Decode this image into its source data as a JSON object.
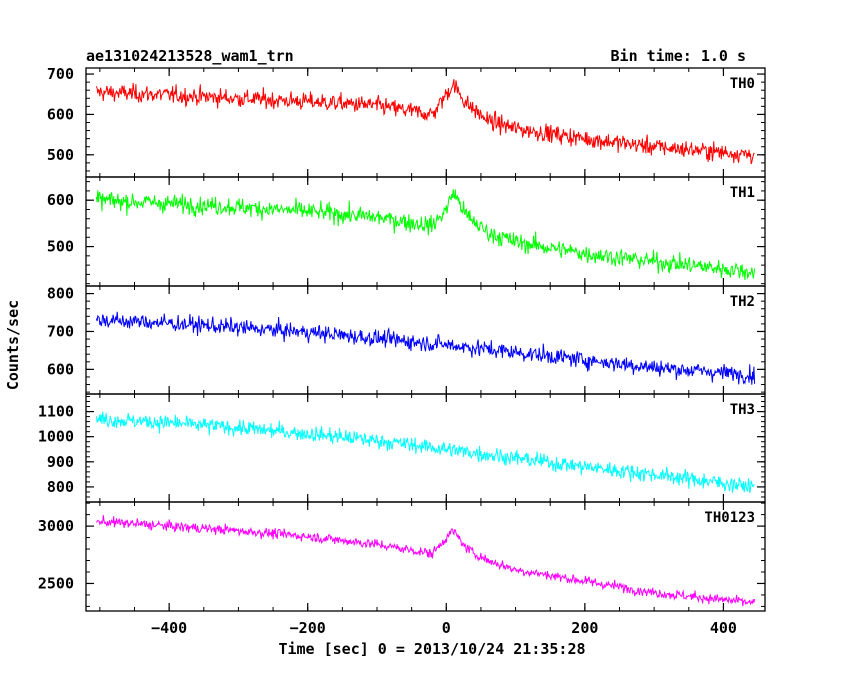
{
  "chart_data": {
    "type": "line",
    "title": "ae131024213528_wam1_trn",
    "bin_time_label": "Bin time: 1.0 s",
    "xlabel": "Time [sec] 0 = 2013/10/24 21:35:28",
    "ylabel": "Counts/sec",
    "xlim": [
      -520,
      460
    ],
    "x_ticks": [
      -400,
      -200,
      0,
      200,
      400
    ],
    "x_tick_labels": [
      "−400",
      "−200",
      "0",
      "200",
      "400"
    ],
    "grid": false,
    "panels": [
      {
        "name": "TH0",
        "color": "#ff0000",
        "ylim": [
          445,
          715
        ],
        "y_ticks": [
          500,
          600,
          700
        ],
        "y_tick_labels": [
          "500",
          "600",
          "700"
        ],
        "x": [
          -500,
          -400,
          -300,
          -200,
          -100,
          -20,
          0,
          10,
          30,
          60,
          100,
          200,
          300,
          445
        ],
        "y": [
          655,
          648,
          640,
          632,
          622,
          600,
          650,
          675,
          625,
          585,
          565,
          540,
          520,
          500
        ],
        "noise_sd": 28
      },
      {
        "name": "TH1",
        "color": "#00ff00",
        "ylim": [
          415,
          650
        ],
        "y_ticks": [
          500,
          600
        ],
        "y_tick_labels": [
          "500",
          "600"
        ],
        "x": [
          -500,
          -400,
          -300,
          -200,
          -100,
          -20,
          0,
          10,
          30,
          60,
          100,
          200,
          300,
          445
        ],
        "y": [
          600,
          593,
          585,
          576,
          563,
          545,
          580,
          618,
          565,
          530,
          510,
          485,
          468,
          445
        ],
        "noise_sd": 25
      },
      {
        "name": "TH2",
        "color": "#0000ff",
        "ylim": [
          535,
          820
        ],
        "y_ticks": [
          600,
          700,
          800
        ],
        "y_tick_labels": [
          "600",
          "700",
          "800"
        ],
        "x": [
          -500,
          -400,
          -300,
          -200,
          -100,
          0,
          100,
          200,
          300,
          445
        ],
        "y": [
          730,
          722,
          710,
          698,
          682,
          665,
          645,
          625,
          605,
          585
        ],
        "noise_sd": 28
      },
      {
        "name": "TH3",
        "color": "#00ffff",
        "ylim": [
          740,
          1170
        ],
        "y_ticks": [
          800,
          900,
          1000,
          1100
        ],
        "y_tick_labels": [
          "800",
          "900",
          "1000",
          "1100"
        ],
        "x": [
          -500,
          -400,
          -300,
          -200,
          -100,
          0,
          100,
          200,
          300,
          445
        ],
        "y": [
          1070,
          1055,
          1035,
          1012,
          985,
          950,
          915,
          880,
          850,
          800
        ],
        "noise_sd": 40
      },
      {
        "name": "TH0123",
        "color": "#ff00ff",
        "ylim": [
          2260,
          3210
        ],
        "y_ticks": [
          2500,
          3000
        ],
        "y_tick_labels": [
          "2500",
          "3000"
        ],
        "x": [
          -500,
          -400,
          -300,
          -200,
          -100,
          -20,
          0,
          10,
          30,
          60,
          100,
          200,
          300,
          445
        ],
        "y": [
          3040,
          3000,
          2960,
          2910,
          2840,
          2760,
          2900,
          2960,
          2800,
          2700,
          2620,
          2520,
          2420,
          2330
        ],
        "noise_sd": 55
      }
    ]
  }
}
